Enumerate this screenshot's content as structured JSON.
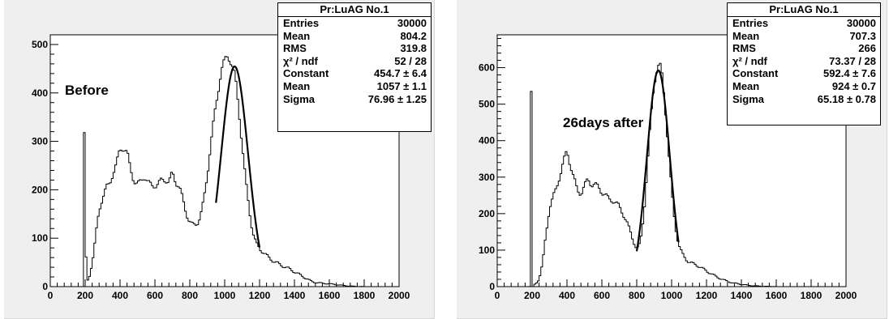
{
  "panels": [
    {
      "id": "left",
      "label": "Before",
      "stats": {
        "title": "Pr:LuAG No.1",
        "rows": [
          {
            "name": "Entries",
            "value": "30000"
          },
          {
            "name": "Mean",
            "value": "804.2"
          },
          {
            "name": "RMS",
            "value": "319.8"
          },
          {
            "name": "χ² / ndf",
            "value": "52 / 28"
          },
          {
            "name": "Constant",
            "value": "454.7 ± 6.4"
          },
          {
            "name": "Mean",
            "value": "1057 ± 1.1"
          },
          {
            "name": "Sigma",
            "value": "76.96 ± 1.25"
          }
        ]
      }
    },
    {
      "id": "right",
      "label": "26days after",
      "stats": {
        "title": "Pr:LuAG No.1",
        "rows": [
          {
            "name": "Entries",
            "value": "30000"
          },
          {
            "name": "Mean",
            "value": "707.3"
          },
          {
            "name": "RMS",
            "value": "266"
          },
          {
            "name": "χ² / ndf",
            "value": "73.37 / 28"
          },
          {
            "name": "Constant",
            "value": "592.4 ± 7.6"
          },
          {
            "name": "Mean",
            "value": "924 ± 0.7"
          },
          {
            "name": "Sigma",
            "value": "65.18 ± 0.78"
          }
        ]
      }
    }
  ],
  "chart_data": [
    {
      "type": "histogram",
      "title": "",
      "xlabel": "",
      "ylabel": "",
      "xlim": [
        0,
        2000
      ],
      "ylim": [
        0,
        520
      ],
      "xticks": [
        0,
        200,
        400,
        600,
        800,
        1000,
        1200,
        1400,
        1600,
        1800,
        2000
      ],
      "yticks": [
        0,
        100,
        200,
        300,
        400,
        500
      ],
      "bin_width": 10,
      "peaks": [
        {
          "x": 195,
          "y": 318
        }
      ],
      "profile": {
        "x": [
          180,
          185,
          190,
          200,
          205,
          210,
          220,
          230,
          240,
          250,
          260,
          280,
          300,
          320,
          340,
          360,
          380,
          400,
          420,
          440,
          460,
          480,
          500,
          520,
          540,
          560,
          580,
          600,
          620,
          640,
          660,
          680,
          700,
          720,
          740,
          760,
          780,
          800,
          820,
          840,
          860,
          880,
          900,
          920,
          940,
          960,
          980,
          1000,
          1020,
          1040,
          1060,
          1080,
          1100,
          1120,
          1140,
          1160,
          1180,
          1200,
          1250,
          1300,
          1350,
          1400,
          1450,
          1500,
          1550,
          1600,
          1650,
          1700,
          1750,
          1800,
          1850,
          1900
        ],
        "y": [
          0,
          0,
          100,
          120,
          60,
          12,
          15,
          30,
          50,
          70,
          100,
          150,
          180,
          200,
          210,
          240,
          260,
          290,
          295,
          280,
          240,
          215,
          205,
          210,
          225,
          215,
          210,
          215,
          220,
          225,
          225,
          215,
          230,
          210,
          200,
          175,
          150,
          135,
          130,
          135,
          150,
          180,
          230,
          290,
          340,
          390,
          440,
          460,
          480,
          470,
          440,
          380,
          300,
          220,
          160,
          110,
          85,
          75,
          62,
          52,
          40,
          28,
          20,
          12,
          8,
          5,
          3,
          2,
          1,
          0,
          0,
          0
        ]
      },
      "fit": {
        "type": "gaussian",
        "constant": 454.7,
        "mean": 1057,
        "sigma": 76.96,
        "range": [
          950,
          1200
        ]
      }
    },
    {
      "type": "histogram",
      "title": "",
      "xlabel": "",
      "ylabel": "",
      "xlim": [
        0,
        2000
      ],
      "ylim": [
        0,
        690
      ],
      "xticks": [
        0,
        200,
        400,
        600,
        800,
        1000,
        1200,
        1400,
        1600,
        1800,
        2000
      ],
      "yticks": [
        0,
        100,
        200,
        300,
        400,
        500,
        600
      ],
      "bin_width": 10,
      "peaks": [
        {
          "x": 195,
          "y": 535
        }
      ],
      "profile": {
        "x": [
          180,
          190,
          200,
          205,
          210,
          220,
          240,
          260,
          280,
          300,
          320,
          340,
          360,
          380,
          400,
          420,
          440,
          460,
          480,
          500,
          520,
          540,
          560,
          580,
          600,
          620,
          640,
          660,
          680,
          700,
          720,
          740,
          760,
          780,
          800,
          820,
          840,
          860,
          880,
          900,
          920,
          940,
          960,
          980,
          1000,
          1020,
          1040,
          1060,
          1080,
          1100,
          1150,
          1200,
          1250,
          1300,
          1350,
          1400,
          1450,
          1500,
          1550,
          1600,
          1700
        ],
        "y": [
          0,
          2,
          15,
          0,
          5,
          8,
          20,
          60,
          140,
          210,
          240,
          270,
          310,
          350,
          380,
          340,
          300,
          260,
          250,
          270,
          285,
          275,
          280,
          275,
          265,
          260,
          245,
          240,
          230,
          215,
          195,
          175,
          150,
          125,
          105,
          120,
          200,
          330,
          460,
          560,
          600,
          590,
          500,
          380,
          260,
          170,
          120,
          95,
          80,
          70,
          55,
          40,
          30,
          20,
          10,
          5,
          3,
          2,
          1,
          0,
          0
        ]
      },
      "fit": {
        "type": "gaussian",
        "constant": 592.4,
        "mean": 924,
        "sigma": 65.18,
        "range": [
          800,
          1040
        ]
      }
    }
  ]
}
